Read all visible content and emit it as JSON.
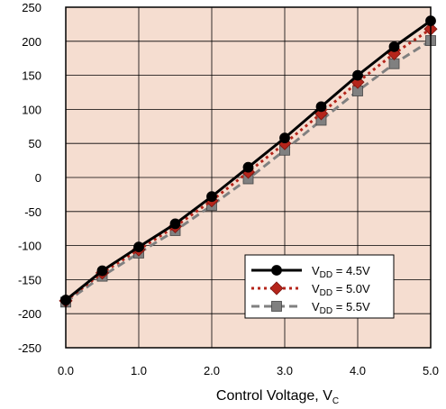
{
  "chart_data": {
    "type": "line",
    "title": "",
    "xlabel": "Control Voltage, V",
    "xlabel_sub": "C",
    "ylabel": "",
    "x": [
      0.0,
      0.5,
      1.0,
      1.5,
      2.0,
      2.5,
      3.0,
      3.5,
      4.0,
      4.5,
      5.0
    ],
    "xlim": [
      0.0,
      5.0
    ],
    "ylim": [
      -250,
      250
    ],
    "xticks": [
      "0.0",
      "1.0",
      "2.0",
      "3.0",
      "4.0",
      "5.0"
    ],
    "yticks": [
      "250",
      "200",
      "150",
      "100",
      "50",
      "0",
      "-50",
      "-100",
      "-150",
      "-200",
      "-250"
    ],
    "grid": true,
    "legend_position": "bottom-right",
    "plot_background": "#f5ddd0",
    "series": [
      {
        "label_main": "V",
        "label_sub": "DD",
        "label_rest": " = 4.5V",
        "color": "#000000",
        "marker": "circle",
        "line_style": "solid",
        "values": [
          -180,
          -137,
          -102,
          -68,
          -28,
          15,
          58,
          104,
          150,
          192,
          230
        ]
      },
      {
        "label_main": "V",
        "label_sub": "DD",
        "label_rest": " = 5.0V",
        "color": "#b5251b",
        "marker": "diamond",
        "line_style": "dotted",
        "values": [
          -181,
          -140,
          -106,
          -72,
          -34,
          8,
          50,
          94,
          140,
          182,
          218
        ]
      },
      {
        "label_main": "V",
        "label_sub": "DD",
        "label_rest": " = 5.5V",
        "color": "#808080",
        "marker": "square",
        "line_style": "dashed",
        "values": [
          -183,
          -145,
          -111,
          -78,
          -41,
          -2,
          40,
          84,
          127,
          167,
          201
        ]
      }
    ]
  }
}
